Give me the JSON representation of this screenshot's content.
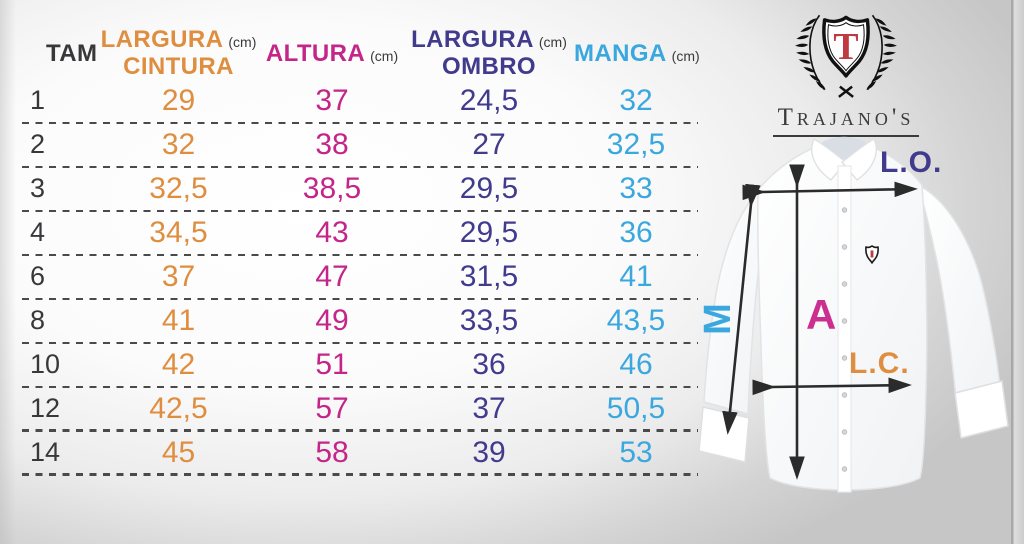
{
  "table": {
    "header": {
      "tam": "TAM",
      "largura_cintura_line1": "LARGURA",
      "largura_cintura_line2": "CINTURA",
      "altura": "ALTURA",
      "largura_ombro_line1": "LARGURA",
      "largura_ombro_line2": "OMBRO",
      "manga": "MANGA",
      "unit": "(cm)"
    },
    "rows": [
      {
        "tam": "1",
        "largura_cintura": "29",
        "altura": "37",
        "largura_ombro": "24,5",
        "manga": "32"
      },
      {
        "tam": "2",
        "largura_cintura": "32",
        "altura": "38",
        "largura_ombro": "27",
        "manga": "32,5"
      },
      {
        "tam": "3",
        "largura_cintura": "32,5",
        "altura": "38,5",
        "largura_ombro": "29,5",
        "manga": "33"
      },
      {
        "tam": "4",
        "largura_cintura": "34,5",
        "altura": "43",
        "largura_ombro": "29,5",
        "manga": "36"
      },
      {
        "tam": "6",
        "largura_cintura": "37",
        "altura": "47",
        "largura_ombro": "31,5",
        "manga": "41"
      },
      {
        "tam": "8",
        "largura_cintura": "41",
        "altura": "49",
        "largura_ombro": "33,5",
        "manga": "43,5"
      },
      {
        "tam": "10",
        "largura_cintura": "42",
        "altura": "51",
        "largura_ombro": "36",
        "manga": "46"
      },
      {
        "tam": "12",
        "largura_cintura": "42,5",
        "altura": "57",
        "largura_ombro": "37",
        "manga": "50,5"
      },
      {
        "tam": "14",
        "largura_cintura": "45",
        "altura": "58",
        "largura_ombro": "39",
        "manga": "53"
      }
    ]
  },
  "brand": {
    "name": "Trajano's",
    "monogram": "T"
  },
  "diagram": {
    "shoulder_label": "L.O.",
    "height_label": "A",
    "sleeve_label": "M",
    "waist_label": "L.C."
  },
  "colors": {
    "waist_orange": "#df8e3f",
    "height_magenta": "#c42589",
    "shoulder_navy": "#413b8d",
    "sleeve_cyan": "#3aa8df",
    "dark_text": "#38383a",
    "brand_red": "#be3a40",
    "arrow_black": "#2b2b2b"
  }
}
